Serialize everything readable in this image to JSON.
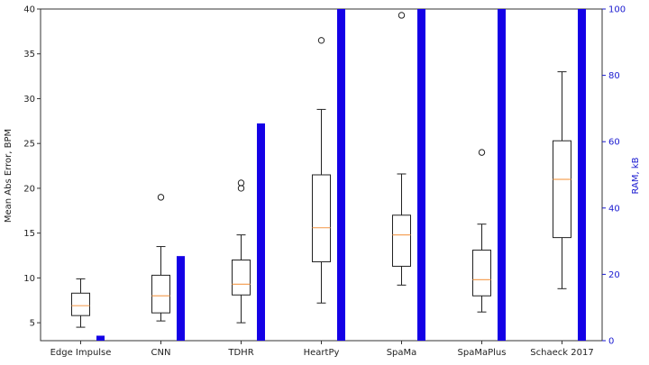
{
  "chart_data": {
    "type": "box+bar",
    "categories": [
      "Edge Impulse",
      "CNN",
      "TDHR",
      "HeartPy",
      "SpaMa",
      "SpaMaPlus",
      "Schaeck 2017"
    ],
    "ylabel_left": "Mean Abs Error, BPM",
    "ylabel_right": "RAM, kB",
    "ylim_left": [
      3,
      40
    ],
    "ylim_right": [
      0,
      100
    ],
    "yticks_left": [
      5,
      10,
      15,
      20,
      25,
      30,
      35,
      40
    ],
    "yticks_right": [
      0,
      20,
      40,
      60,
      80,
      100
    ],
    "box_series": [
      {
        "category": "Edge Impulse",
        "whisker_low": 4.5,
        "q1": 5.8,
        "median": 6.9,
        "q3": 8.3,
        "whisker_high": 9.9,
        "outliers": []
      },
      {
        "category": "CNN",
        "whisker_low": 5.2,
        "q1": 6.1,
        "median": 8.0,
        "q3": 10.3,
        "whisker_high": 13.5,
        "outliers": [
          19.0
        ]
      },
      {
        "category": "TDHR",
        "whisker_low": 5.0,
        "q1": 8.1,
        "median": 9.3,
        "q3": 12.0,
        "whisker_high": 14.8,
        "outliers": [
          20.0,
          20.6
        ]
      },
      {
        "category": "HeartPy",
        "whisker_low": 7.2,
        "q1": 11.8,
        "median": 15.6,
        "q3": 21.5,
        "whisker_high": 28.8,
        "outliers": [
          36.5
        ]
      },
      {
        "category": "SpaMa",
        "whisker_low": 9.2,
        "q1": 11.3,
        "median": 14.8,
        "q3": 17.0,
        "whisker_high": 21.6,
        "outliers": [
          39.3
        ]
      },
      {
        "category": "SpaMaPlus",
        "whisker_low": 6.2,
        "q1": 8.0,
        "median": 9.8,
        "q3": 13.1,
        "whisker_high": 16.0,
        "outliers": [
          24.0
        ]
      },
      {
        "category": "Schaeck 2017",
        "whisker_low": 8.8,
        "q1": 14.5,
        "median": 21.0,
        "q3": 25.3,
        "whisker_high": 33.0,
        "outliers": []
      }
    ],
    "bar_series": {
      "axis": "right",
      "values": [
        1.5,
        25.5,
        65.5,
        100,
        100,
        100,
        100
      ]
    },
    "colors": {
      "box_edge": "#222222",
      "median": "#f5a35b",
      "bar": "#1400e6",
      "right_axis": "#1a1ad0"
    }
  }
}
